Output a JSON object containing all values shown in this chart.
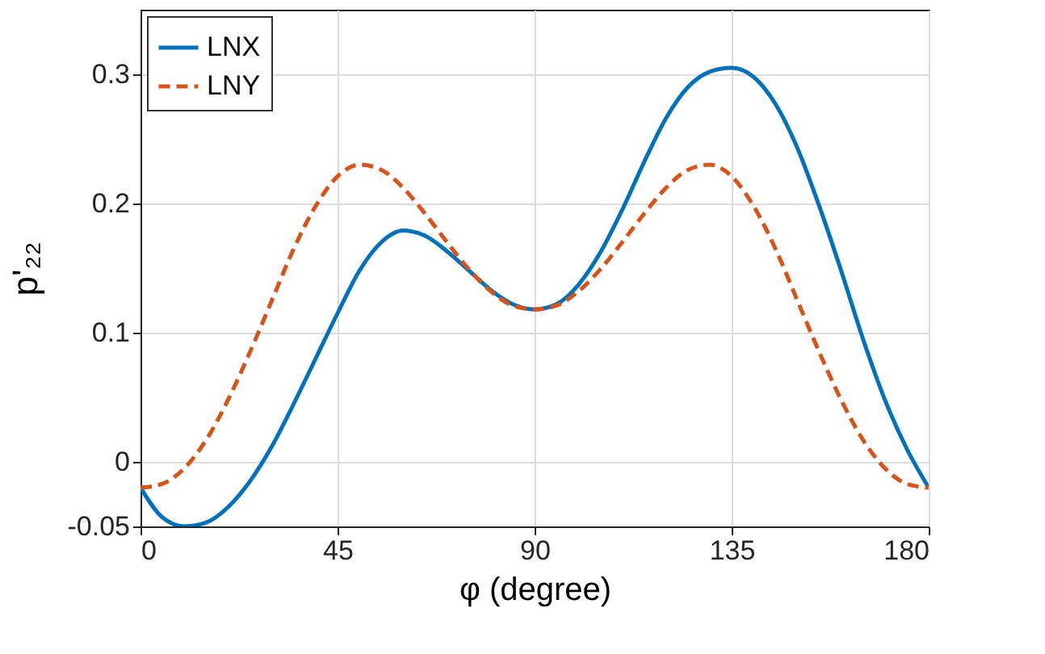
{
  "chart_data": {
    "type": "line",
    "xlabel": "φ (degree)",
    "ylabel": "p'₂₂",
    "x": [
      0,
      5,
      10,
      15,
      20,
      25,
      30,
      35,
      40,
      45,
      50,
      55,
      60,
      65,
      70,
      75,
      80,
      85,
      90,
      95,
      100,
      105,
      110,
      115,
      120,
      125,
      130,
      135,
      140,
      145,
      150,
      155,
      160,
      165,
      170,
      175,
      180
    ],
    "series": [
      {
        "name": "LNX",
        "color": "#0072bd",
        "line_style": "solid",
        "values": [
          -0.02,
          -0.043,
          -0.05,
          -0.047,
          -0.035,
          -0.015,
          0.012,
          0.045,
          0.08,
          0.115,
          0.148,
          0.17,
          0.179,
          0.175,
          0.163,
          0.148,
          0.133,
          0.122,
          0.118,
          0.122,
          0.137,
          0.162,
          0.195,
          0.232,
          0.266,
          0.29,
          0.302,
          0.305,
          0.298,
          0.277,
          0.243,
          0.198,
          0.148,
          0.095,
          0.048,
          0.01,
          -0.02
        ]
      },
      {
        "name": "LNY",
        "color": "#d95319",
        "line_style": "dashed",
        "values": [
          -0.02,
          -0.017,
          -0.005,
          0.017,
          0.048,
          0.085,
          0.125,
          0.165,
          0.198,
          0.221,
          0.23,
          0.226,
          0.212,
          0.192,
          0.17,
          0.149,
          0.132,
          0.121,
          0.118,
          0.121,
          0.132,
          0.149,
          0.17,
          0.192,
          0.212,
          0.226,
          0.23,
          0.221,
          0.198,
          0.165,
          0.125,
          0.085,
          0.048,
          0.017,
          -0.005,
          -0.017,
          -0.02
        ]
      }
    ],
    "xlim": [
      0,
      180
    ],
    "xticks": [
      0,
      45,
      90,
      135,
      180
    ],
    "ylim": [
      -0.05,
      0.35
    ],
    "yticks": [
      -0.05,
      0,
      0.1,
      0.2,
      0.3
    ],
    "grid": true,
    "legend": "top left"
  }
}
